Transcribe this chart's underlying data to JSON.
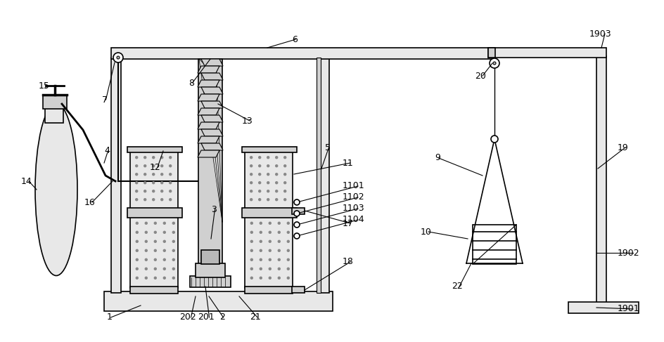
{
  "bg": "#ffffff",
  "lc": "#000000",
  "gray1": "#e8e8e8",
  "gray2": "#d0d0d0",
  "gray3": "#b8b8b8",
  "dot_c": "#888888"
}
